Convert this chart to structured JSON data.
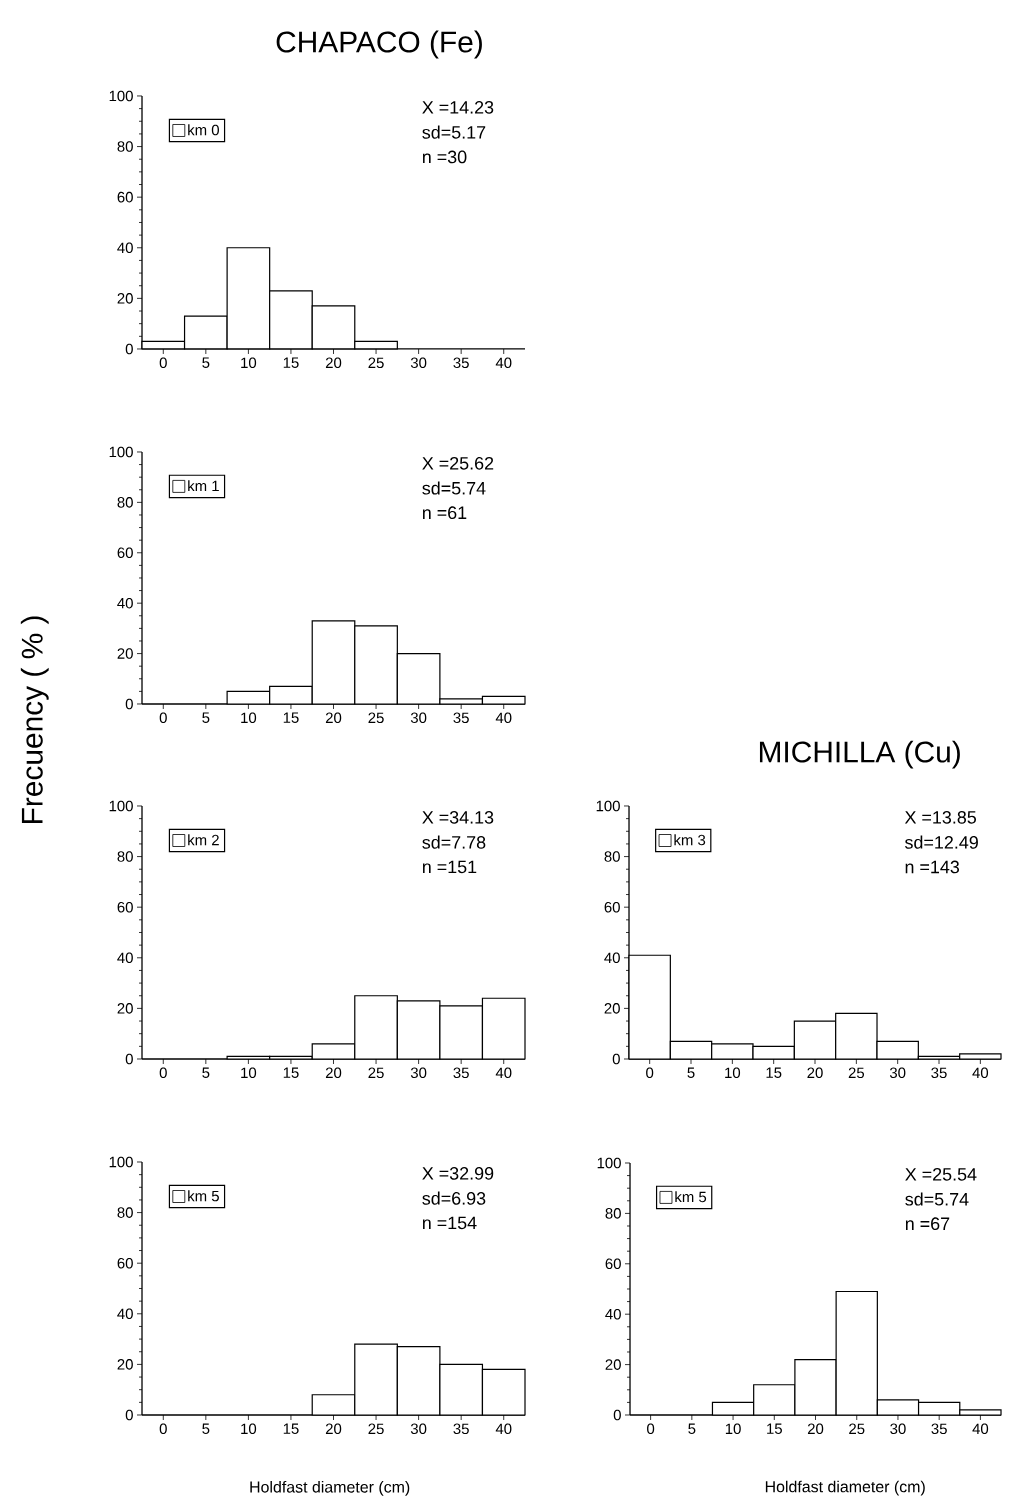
{
  "chart_data": [
    {
      "type": "bar",
      "title": "CHAPACO (Fe)",
      "categories": [
        "0",
        "5",
        "10",
        "15",
        "20",
        "25",
        "30",
        "35",
        "40"
      ],
      "series": [
        {
          "name": "km 0",
          "color": "#ffffff",
          "values": [
            3,
            13,
            40,
            23,
            17,
            3,
            0,
            0,
            0
          ]
        }
      ],
      "ylim": [
        0,
        100
      ],
      "yticks": [
        0,
        20,
        40,
        60,
        80,
        100
      ],
      "legend": "top left",
      "annotations": [
        "X =14.23",
        "sd=5.17",
        "n =30"
      ]
    },
    {
      "type": "bar",
      "categories": [
        "0",
        "5",
        "10",
        "15",
        "20",
        "25",
        "30",
        "35",
        "40"
      ],
      "series": [
        {
          "name": "km 1",
          "color": "#ffffff",
          "values": [
            0,
            0,
            5,
            7,
            33,
            31,
            20,
            2,
            3
          ]
        }
      ],
      "ylim": [
        0,
        100
      ],
      "yticks": [
        0,
        20,
        40,
        60,
        80,
        100
      ],
      "legend": "top left",
      "annotations": [
        "X =25.62",
        "sd=5.74",
        "n =61"
      ]
    },
    {
      "type": "bar",
      "ylabel": "Frecuency ( % )",
      "categories": [
        "0",
        "5",
        "10",
        "15",
        "20",
        "25",
        "30",
        "35",
        "40"
      ],
      "series": [
        {
          "name": "km 2",
          "color": "#ffffff",
          "values": [
            0,
            0,
            1,
            1,
            6,
            25,
            23,
            21,
            24
          ]
        }
      ],
      "ylim": [
        0,
        100
      ],
      "yticks": [
        0,
        20,
        40,
        60,
        80,
        100
      ],
      "legend": "top left",
      "annotations": [
        "X =34.13",
        "sd=7.78",
        "n =151"
      ]
    },
    {
      "type": "bar",
      "title": "MICHILLA (Cu)",
      "categories": [
        "0",
        "5",
        "10",
        "15",
        "20",
        "25",
        "30",
        "35",
        "40"
      ],
      "series": [
        {
          "name": "km 3",
          "color": "#ffffff",
          "values": [
            41,
            7,
            6,
            5,
            15,
            18,
            7,
            1,
            2
          ]
        }
      ],
      "ylim": [
        0,
        100
      ],
      "yticks": [
        0,
        20,
        40,
        60,
        80,
        100
      ],
      "legend": "top left",
      "annotations": [
        "X =13.85",
        "sd=12.49",
        "n =143"
      ]
    },
    {
      "type": "bar",
      "xlabel": "Holdfast diameter (cm)",
      "categories": [
        "0",
        "5",
        "10",
        "15",
        "20",
        "25",
        "30",
        "35",
        "40"
      ],
      "series": [
        {
          "name": "km 5",
          "color": "#ffffff",
          "values": [
            0,
            0,
            0,
            0,
            8,
            28,
            27,
            20,
            18
          ]
        }
      ],
      "ylim": [
        0,
        100
      ],
      "yticks": [
        0,
        20,
        40,
        60,
        80,
        100
      ],
      "legend": "top left",
      "annotations": [
        "X =32.99",
        "sd=6.93",
        "n =154"
      ]
    },
    {
      "type": "bar",
      "xlabel": "Holdfast diameter (cm)",
      "categories": [
        "0",
        "5",
        "10",
        "15",
        "20",
        "25",
        "30",
        "35",
        "40"
      ],
      "series": [
        {
          "name": "km 5",
          "color": "#ffffff",
          "values": [
            0,
            0,
            5,
            12,
            22,
            49,
            6,
            5,
            2
          ]
        }
      ],
      "ylim": [
        0,
        100
      ],
      "yticks": [
        0,
        20,
        40,
        60,
        80,
        100
      ],
      "legend": "top left",
      "annotations": [
        "X =25.54",
        "sd=5.74",
        "n =67"
      ]
    }
  ]
}
